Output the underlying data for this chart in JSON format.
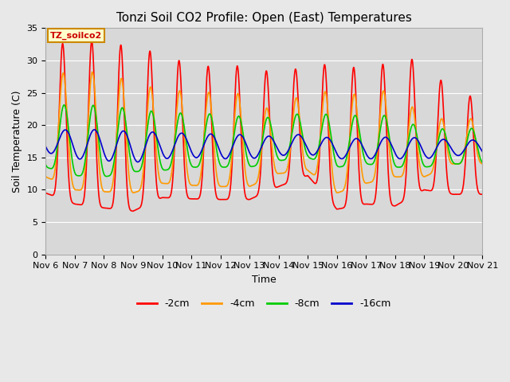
{
  "title": "Tonzi Soil CO2 Profile: Open (East) Temperatures",
  "xlabel": "Time",
  "ylabel": "Soil Temperature (C)",
  "ylim": [
    0,
    35
  ],
  "yticks": [
    0,
    5,
    10,
    15,
    20,
    25,
    30,
    35
  ],
  "xtick_labels": [
    "Nov 6",
    "Nov 7",
    "Nov 8",
    "Nov 9",
    "Nov 10",
    "Nov 11",
    "Nov 12",
    "Nov 13",
    "Nov 14",
    "Nov 15",
    "Nov 16",
    "Nov 17",
    "Nov 18",
    "Nov 19",
    "Nov 20",
    "Nov 21"
  ],
  "label_box_text": "TZ_soilco2",
  "legend_entries": [
    "-2cm",
    "-4cm",
    "-8cm",
    "-16cm"
  ],
  "line_colors": [
    "#ff0000",
    "#ff9900",
    "#00cc00",
    "#0000cc"
  ],
  "background_color": "#e8e8e8",
  "plot_bg_color": "#d8d8d8",
  "title_fontsize": 11,
  "axis_fontsize": 9,
  "tick_fontsize": 8,
  "legend_fontsize": 9,
  "peak_day_values_2cm": [
    32.5,
    32.7,
    33.2,
    31.8,
    31.2,
    29.1,
    29.1,
    29.2,
    27.8,
    29.3,
    29.4,
    28.6,
    30.0,
    30.3,
    24.5
  ],
  "trough_day_values_2cm": [
    9.5,
    7.8,
    7.2,
    6.7,
    8.8,
    8.6,
    8.5,
    8.5,
    10.5,
    12.2,
    7.0,
    7.8,
    7.5,
    10.0,
    9.3
  ],
  "peak_day_values_4cm": [
    28.0,
    28.1,
    28.3,
    26.5,
    25.5,
    25.2,
    25.0,
    24.8,
    21.2,
    26.2,
    24.5,
    25.0,
    25.5,
    21.0,
    21.0
  ],
  "trough_day_values_4cm": [
    12.0,
    10.0,
    9.7,
    9.5,
    11.0,
    10.7,
    10.5,
    10.5,
    12.5,
    13.0,
    9.5,
    11.0,
    12.0,
    12.0,
    14.0
  ],
  "peak_day_values_8cm": [
    23.0,
    23.2,
    23.0,
    22.5,
    22.0,
    21.8,
    21.7,
    21.2,
    21.2,
    22.0,
    21.5,
    21.5,
    21.5,
    19.3,
    19.5
  ],
  "trough_day_values_8cm": [
    13.5,
    12.2,
    12.0,
    12.8,
    13.0,
    13.5,
    13.5,
    13.5,
    14.5,
    15.0,
    13.5,
    14.0,
    13.5,
    13.5,
    14.0
  ],
  "peak_day_values_16cm": [
    19.2,
    19.3,
    19.3,
    19.0,
    18.9,
    18.7,
    18.6,
    18.5,
    18.2,
    18.7,
    17.8,
    18.0,
    18.2,
    18.0,
    17.7
  ],
  "trough_day_values_16cm": [
    15.8,
    14.8,
    14.5,
    14.2,
    14.8,
    15.0,
    14.8,
    14.8,
    15.3,
    15.5,
    14.8,
    14.8,
    14.8,
    14.8,
    15.3
  ],
  "phase_peak_2cm": 0.58,
  "phase_peak_4cm": 0.6,
  "phase_peak_8cm": 0.63,
  "phase_peak_16cm": 0.67,
  "sharpness_2cm": 8.0,
  "sharpness_4cm": 5.0,
  "sharpness_8cm": 3.5,
  "sharpness_16cm": 2.0
}
